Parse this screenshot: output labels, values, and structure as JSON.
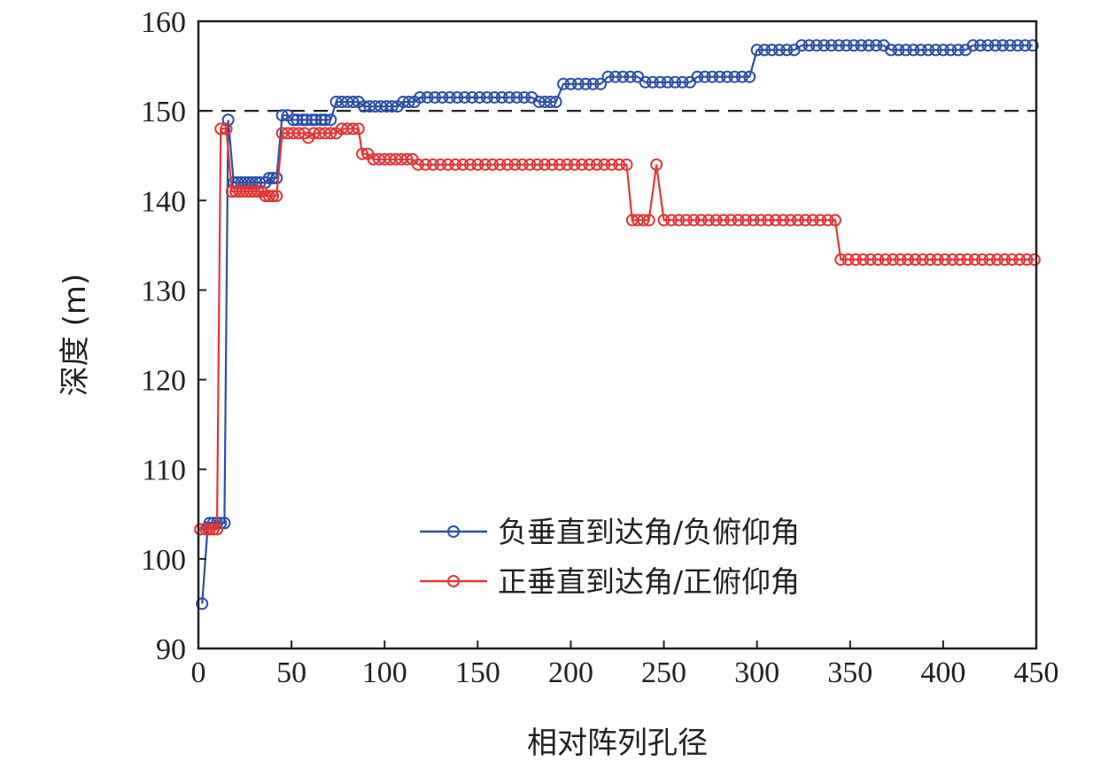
{
  "chart_data": {
    "type": "line",
    "xlabel": "相对阵列孔径",
    "ylabel": "深度 (m)",
    "xlim": [
      0,
      450
    ],
    "ylim": [
      90,
      160
    ],
    "x_ticks": [
      0,
      50,
      100,
      150,
      200,
      250,
      300,
      350,
      400,
      450
    ],
    "y_ticks": [
      90,
      100,
      110,
      120,
      130,
      140,
      150,
      160
    ],
    "reference_line": {
      "y": 150,
      "style": "dashed",
      "color": "#222222"
    },
    "legend_position": "lower-right",
    "series": [
      {
        "name": "负垂直到达角/负俯仰角",
        "color": "#2b4fa8",
        "marker": "circle",
        "points": [
          [
            2,
            95
          ],
          [
            5,
            103.5
          ],
          [
            6,
            104
          ],
          [
            8,
            104
          ],
          [
            10,
            104
          ],
          [
            12,
            104
          ],
          [
            14,
            104
          ],
          [
            16,
            149
          ],
          [
            19,
            142
          ],
          [
            21,
            142
          ],
          [
            23,
            142
          ],
          [
            25,
            142
          ],
          [
            27,
            142
          ],
          [
            29,
            142
          ],
          [
            31,
            142
          ],
          [
            33,
            142
          ],
          [
            36,
            142
          ],
          [
            38,
            142.5
          ],
          [
            40,
            142.5
          ],
          [
            42,
            142.5
          ],
          [
            45,
            149.5
          ],
          [
            48,
            149.5
          ],
          [
            51,
            149
          ],
          [
            53,
            149
          ],
          [
            56,
            149
          ],
          [
            58,
            149
          ],
          [
            61,
            149
          ],
          [
            63,
            149
          ],
          [
            66,
            149
          ],
          [
            68,
            149
          ],
          [
            71,
            149
          ],
          [
            74,
            151
          ],
          [
            77,
            151
          ],
          [
            80,
            151
          ],
          [
            83,
            151
          ],
          [
            86,
            151
          ],
          [
            89,
            150.5
          ],
          [
            92,
            150.5
          ],
          [
            95,
            150.5
          ],
          [
            98,
            150.5
          ],
          [
            101,
            150.5
          ],
          [
            104,
            150.5
          ],
          [
            107,
            150.5
          ],
          [
            110,
            151
          ],
          [
            113,
            151
          ],
          [
            116,
            151
          ],
          [
            119,
            151.5
          ],
          [
            123,
            151.5
          ],
          [
            127,
            151.5
          ],
          [
            131,
            151.5
          ],
          [
            135,
            151.5
          ],
          [
            139,
            151.5
          ],
          [
            143,
            151.5
          ],
          [
            147,
            151.5
          ],
          [
            151,
            151.5
          ],
          [
            155,
            151.5
          ],
          [
            159,
            151.5
          ],
          [
            163,
            151.5
          ],
          [
            167,
            151.5
          ],
          [
            171,
            151.5
          ],
          [
            175,
            151.5
          ],
          [
            179,
            151.5
          ],
          [
            183,
            151
          ],
          [
            186,
            151
          ],
          [
            189,
            151
          ],
          [
            192,
            151
          ],
          [
            196,
            153
          ],
          [
            200,
            153
          ],
          [
            204,
            153
          ],
          [
            208,
            153
          ],
          [
            212,
            153
          ],
          [
            216,
            153
          ],
          [
            220,
            153.8
          ],
          [
            224,
            153.8
          ],
          [
            228,
            153.8
          ],
          [
            232,
            153.8
          ],
          [
            236,
            153.8
          ],
          [
            240,
            153.2
          ],
          [
            244,
            153.2
          ],
          [
            248,
            153.2
          ],
          [
            252,
            153.2
          ],
          [
            256,
            153.2
          ],
          [
            260,
            153.2
          ],
          [
            264,
            153.2
          ],
          [
            268,
            153.8
          ],
          [
            272,
            153.8
          ],
          [
            276,
            153.8
          ],
          [
            280,
            153.8
          ],
          [
            284,
            153.8
          ],
          [
            288,
            153.8
          ],
          [
            292,
            153.8
          ],
          [
            296,
            153.8
          ],
          [
            300,
            156.8
          ],
          [
            304,
            156.8
          ],
          [
            308,
            156.8
          ],
          [
            312,
            156.8
          ],
          [
            316,
            156.8
          ],
          [
            320,
            156.8
          ],
          [
            324,
            157.3
          ],
          [
            328,
            157.3
          ],
          [
            332,
            157.3
          ],
          [
            336,
            157.3
          ],
          [
            340,
            157.3
          ],
          [
            344,
            157.3
          ],
          [
            348,
            157.3
          ],
          [
            352,
            157.3
          ],
          [
            356,
            157.3
          ],
          [
            360,
            157.3
          ],
          [
            364,
            157.3
          ],
          [
            368,
            157.3
          ],
          [
            372,
            156.8
          ],
          [
            376,
            156.8
          ],
          [
            380,
            156.8
          ],
          [
            384,
            156.8
          ],
          [
            388,
            156.8
          ],
          [
            392,
            156.8
          ],
          [
            396,
            156.8
          ],
          [
            400,
            156.8
          ],
          [
            404,
            156.8
          ],
          [
            408,
            156.8
          ],
          [
            412,
            156.8
          ],
          [
            416,
            157.3
          ],
          [
            420,
            157.3
          ],
          [
            424,
            157.3
          ],
          [
            428,
            157.3
          ],
          [
            432,
            157.3
          ],
          [
            436,
            157.3
          ],
          [
            440,
            157.3
          ],
          [
            444,
            157.3
          ],
          [
            448,
            157.3
          ]
        ]
      },
      {
        "name": "正垂直到达角/正俯仰角",
        "color": "#e23636",
        "marker": "circle",
        "points": [
          [
            1,
            103.3
          ],
          [
            4,
            103.3
          ],
          [
            6,
            103.3
          ],
          [
            8,
            103.3
          ],
          [
            10,
            103.3
          ],
          [
            12,
            148
          ],
          [
            15,
            148
          ],
          [
            18,
            141
          ],
          [
            20,
            141
          ],
          [
            22,
            141
          ],
          [
            24,
            141
          ],
          [
            26,
            141
          ],
          [
            28,
            141
          ],
          [
            30,
            141
          ],
          [
            32,
            141
          ],
          [
            34,
            141
          ],
          [
            36,
            140.5
          ],
          [
            38,
            140.5
          ],
          [
            40,
            140.5
          ],
          [
            42,
            140.5
          ],
          [
            45,
            147.5
          ],
          [
            48,
            147.5
          ],
          [
            51,
            147.5
          ],
          [
            54,
            147.5
          ],
          [
            57,
            147.5
          ],
          [
            59,
            147
          ],
          [
            62,
            147.5
          ],
          [
            65,
            147.5
          ],
          [
            68,
            147.5
          ],
          [
            71,
            147.5
          ],
          [
            74,
            147.5
          ],
          [
            77,
            148
          ],
          [
            80,
            148
          ],
          [
            83,
            148
          ],
          [
            86,
            148
          ],
          [
            88,
            145.2
          ],
          [
            91,
            145.2
          ],
          [
            94,
            144.6
          ],
          [
            97,
            144.6
          ],
          [
            100,
            144.6
          ],
          [
            103,
            144.6
          ],
          [
            106,
            144.6
          ],
          [
            109,
            144.6
          ],
          [
            112,
            144.6
          ],
          [
            115,
            144.6
          ],
          [
            118,
            144
          ],
          [
            122,
            144
          ],
          [
            126,
            144
          ],
          [
            130,
            144
          ],
          [
            134,
            144
          ],
          [
            138,
            144
          ],
          [
            142,
            144
          ],
          [
            146,
            144
          ],
          [
            150,
            144
          ],
          [
            154,
            144
          ],
          [
            158,
            144
          ],
          [
            162,
            144
          ],
          [
            166,
            144
          ],
          [
            170,
            144
          ],
          [
            174,
            144
          ],
          [
            178,
            144
          ],
          [
            182,
            144
          ],
          [
            186,
            144
          ],
          [
            190,
            144
          ],
          [
            194,
            144
          ],
          [
            198,
            144
          ],
          [
            202,
            144
          ],
          [
            206,
            144
          ],
          [
            210,
            144
          ],
          [
            214,
            144
          ],
          [
            218,
            144
          ],
          [
            222,
            144
          ],
          [
            226,
            144
          ],
          [
            230,
            144
          ],
          [
            233,
            137.8
          ],
          [
            236,
            137.8
          ],
          [
            239,
            137.8
          ],
          [
            242,
            137.8
          ],
          [
            246,
            144
          ],
          [
            250,
            137.8
          ],
          [
            254,
            137.8
          ],
          [
            258,
            137.8
          ],
          [
            262,
            137.8
          ],
          [
            266,
            137.8
          ],
          [
            270,
            137.8
          ],
          [
            274,
            137.8
          ],
          [
            278,
            137.8
          ],
          [
            282,
            137.8
          ],
          [
            286,
            137.8
          ],
          [
            290,
            137.8
          ],
          [
            294,
            137.8
          ],
          [
            298,
            137.8
          ],
          [
            302,
            137.8
          ],
          [
            306,
            137.8
          ],
          [
            310,
            137.8
          ],
          [
            314,
            137.8
          ],
          [
            318,
            137.8
          ],
          [
            322,
            137.8
          ],
          [
            326,
            137.8
          ],
          [
            330,
            137.8
          ],
          [
            334,
            137.8
          ],
          [
            338,
            137.8
          ],
          [
            342,
            137.8
          ],
          [
            345,
            133.4
          ],
          [
            349,
            133.4
          ],
          [
            353,
            133.4
          ],
          [
            357,
            133.4
          ],
          [
            361,
            133.4
          ],
          [
            365,
            133.4
          ],
          [
            369,
            133.4
          ],
          [
            373,
            133.4
          ],
          [
            377,
            133.4
          ],
          [
            381,
            133.4
          ],
          [
            385,
            133.4
          ],
          [
            389,
            133.4
          ],
          [
            393,
            133.4
          ],
          [
            397,
            133.4
          ],
          [
            401,
            133.4
          ],
          [
            405,
            133.4
          ],
          [
            409,
            133.4
          ],
          [
            413,
            133.4
          ],
          [
            417,
            133.4
          ],
          [
            421,
            133.4
          ],
          [
            425,
            133.4
          ],
          [
            429,
            133.4
          ],
          [
            433,
            133.4
          ],
          [
            437,
            133.4
          ],
          [
            441,
            133.4
          ],
          [
            445,
            133.4
          ],
          [
            449,
            133.4
          ]
        ]
      }
    ]
  }
}
